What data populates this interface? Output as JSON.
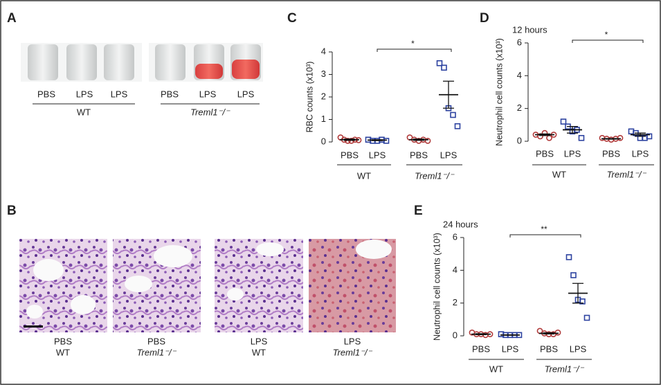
{
  "panels": {
    "A": {
      "letter": "A",
      "labels": [
        "PBS",
        "LPS",
        "LPS",
        "PBS",
        "LPS",
        "LPS"
      ],
      "groups": [
        "WT",
        "Treml1⁻/⁻"
      ]
    },
    "B": {
      "letter": "B",
      "labels": [
        [
          "PBS",
          "WT"
        ],
        [
          "PBS",
          "Treml1⁻/⁻"
        ],
        [
          "LPS",
          "WT"
        ],
        [
          "LPS",
          "Treml1⁻/⁻"
        ]
      ]
    }
  },
  "chart_data": [
    {
      "type": "dotplot",
      "letter": "C",
      "ylabel": "RBC counts (x10³)",
      "ylim": [
        0,
        4
      ],
      "yticks": [
        0,
        1,
        2,
        3,
        4
      ],
      "categories": [
        "PBS",
        "LPS",
        "PBS",
        "LPS"
      ],
      "group_labels": [
        "WT",
        "Treml1⁻/⁻"
      ],
      "points": [
        [
          0.2,
          0.1,
          0.05,
          0.05,
          0.1,
          0.08
        ],
        [
          0.1,
          0.05,
          0.05,
          0.1,
          0.05
        ],
        [
          0.2,
          0.1,
          0.05,
          0.1,
          0.05
        ],
        [
          3.5,
          3.3,
          1.5,
          1.2,
          0.7
        ]
      ],
      "means": [
        0.1,
        0.08,
        0.1,
        2.1
      ],
      "sems": [
        0.03,
        0.02,
        0.03,
        0.6
      ],
      "colors": [
        "#b03a3a",
        "#2d43a0",
        "#b03a3a",
        "#2d43a0"
      ],
      "markers": [
        "circle",
        "square",
        "circle",
        "square"
      ],
      "annotation": "*"
    },
    {
      "type": "dotplot",
      "letter": "D",
      "title": "12 hours",
      "ylabel": "Neutrophil cell counts (x10³)",
      "ylim": [
        0,
        6
      ],
      "yticks": [
        0,
        2,
        4,
        6
      ],
      "categories": [
        "PBS",
        "LPS",
        "PBS",
        "LPS"
      ],
      "group_labels": [
        "WT",
        "Treml1⁻/⁻"
      ],
      "points": [
        [
          0.4,
          0.3,
          0.5,
          0.2,
          0.4
        ],
        [
          1.2,
          0.9,
          0.6,
          0.7,
          0.2
        ],
        [
          0.2,
          0.15,
          0.1,
          0.15,
          0.2
        ],
        [
          0.6,
          0.5,
          0.2,
          0.2,
          0.3
        ]
      ],
      "means": [
        0.4,
        0.7,
        0.15,
        0.4
      ],
      "sems": [
        0.05,
        0.2,
        0.02,
        0.1
      ],
      "colors": [
        "#b03a3a",
        "#2d43a0",
        "#b03a3a",
        "#2d43a0"
      ],
      "markers": [
        "circle",
        "square",
        "circle",
        "square"
      ],
      "annotation": "*"
    },
    {
      "type": "dotplot",
      "letter": "E",
      "title": "24 hours",
      "ylabel": "Neutrophil cell counts (x10³)",
      "ylim": [
        0,
        6
      ],
      "yticks": [
        0,
        2,
        4,
        6
      ],
      "categories": [
        "PBS",
        "LPS",
        "PBS",
        "LPS"
      ],
      "group_labels": [
        "WT",
        "Treml1⁻/⁻"
      ],
      "points": [
        [
          0.2,
          0.1,
          0.1,
          0.05,
          0.1
        ],
        [
          0.1,
          0.05,
          0.05,
          0.05,
          0.05
        ],
        [
          0.3,
          0.15,
          0.1,
          0.1,
          0.2
        ],
        [
          4.8,
          3.7,
          2.2,
          2.1,
          1.1
        ]
      ],
      "means": [
        0.1,
        0.05,
        0.15,
        2.6
      ],
      "sems": [
        0.03,
        0.01,
        0.04,
        0.6
      ],
      "colors": [
        "#b03a3a",
        "#2d43a0",
        "#b03a3a",
        "#2d43a0"
      ],
      "markers": [
        "circle",
        "square",
        "circle",
        "square"
      ],
      "annotation": "**"
    }
  ]
}
